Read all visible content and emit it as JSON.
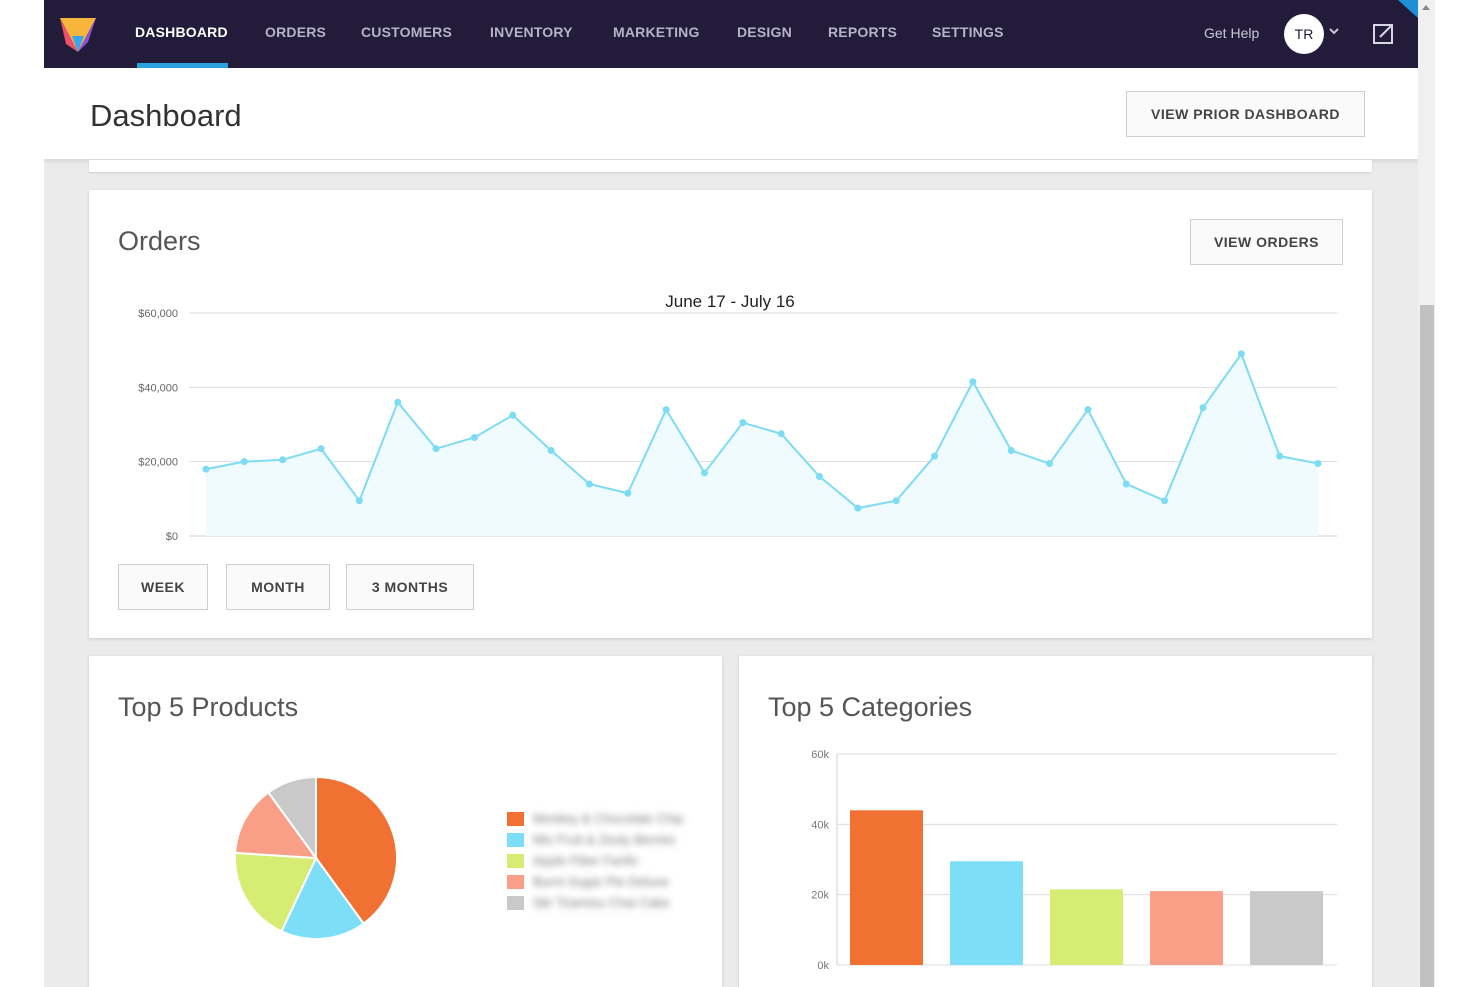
{
  "nav": {
    "items": [
      {
        "label": "DASHBOARD",
        "active": true
      },
      {
        "label": "ORDERS"
      },
      {
        "label": "CUSTOMERS"
      },
      {
        "label": "INVENTORY"
      },
      {
        "label": "MARKETING"
      },
      {
        "label": "DESIGN"
      },
      {
        "label": "REPORTS"
      },
      {
        "label": "SETTINGS"
      }
    ],
    "help_label": "Get Help",
    "avatar_initials": "TR",
    "colors": {
      "bar": "#221c3a",
      "active_underline": "#29a3e0"
    }
  },
  "header": {
    "title": "Dashboard",
    "prior_button": "VIEW PRIOR DASHBOARD"
  },
  "orders": {
    "title": "Orders",
    "view_button": "VIEW ORDERS",
    "ranges": [
      "WEEK",
      "MONTH",
      "3 MONTHS"
    ]
  },
  "products": {
    "title": "Top 5 Products",
    "legend_labels": [
      "Monkey & Chocolate Chip",
      "Mix Fruit & Zesty Berries",
      "Apple Fiber Fanfic",
      "Burnt Sugar Pie Deluxe",
      "Stir Tiramisu Chai Cake"
    ]
  },
  "categories": {
    "title": "Top 5 Categories"
  },
  "chart_data": [
    {
      "type": "area",
      "title": "June 17 - July 16",
      "y_ticks": [
        "$60,000",
        "$40,000",
        "$20,000",
        "$0"
      ],
      "ylim": [
        0,
        60000
      ],
      "color": "#7ddcf2",
      "fill": "#effbfe",
      "grid": true,
      "values": [
        18000,
        20000,
        20500,
        23500,
        9500,
        36000,
        23500,
        26500,
        32500,
        23000,
        14000,
        11500,
        34000,
        17000,
        30500,
        27500,
        16000,
        7500,
        9500,
        21500,
        41500,
        23000,
        19500,
        34000,
        14000,
        9500,
        34500,
        49000,
        21500,
        19500
      ]
    },
    {
      "type": "pie",
      "slices": [
        {
          "value": 40,
          "color": "#f07132"
        },
        {
          "value": 17,
          "color": "#7ddff7"
        },
        {
          "value": 19,
          "color": "#d6ec72"
        },
        {
          "value": 14,
          "color": "#f99e87"
        },
        {
          "value": 10,
          "color": "#c9c9c9"
        }
      ]
    },
    {
      "type": "bar",
      "y_ticks": [
        "60k",
        "40k",
        "20k",
        "0k"
      ],
      "ylim": [
        0,
        60000
      ],
      "grid": true,
      "values": [
        44000,
        29500,
        21500,
        21000,
        21000
      ],
      "colors": [
        "#f07132",
        "#7ddff7",
        "#d6ec72",
        "#f99e87",
        "#c9c9c9"
      ]
    }
  ]
}
